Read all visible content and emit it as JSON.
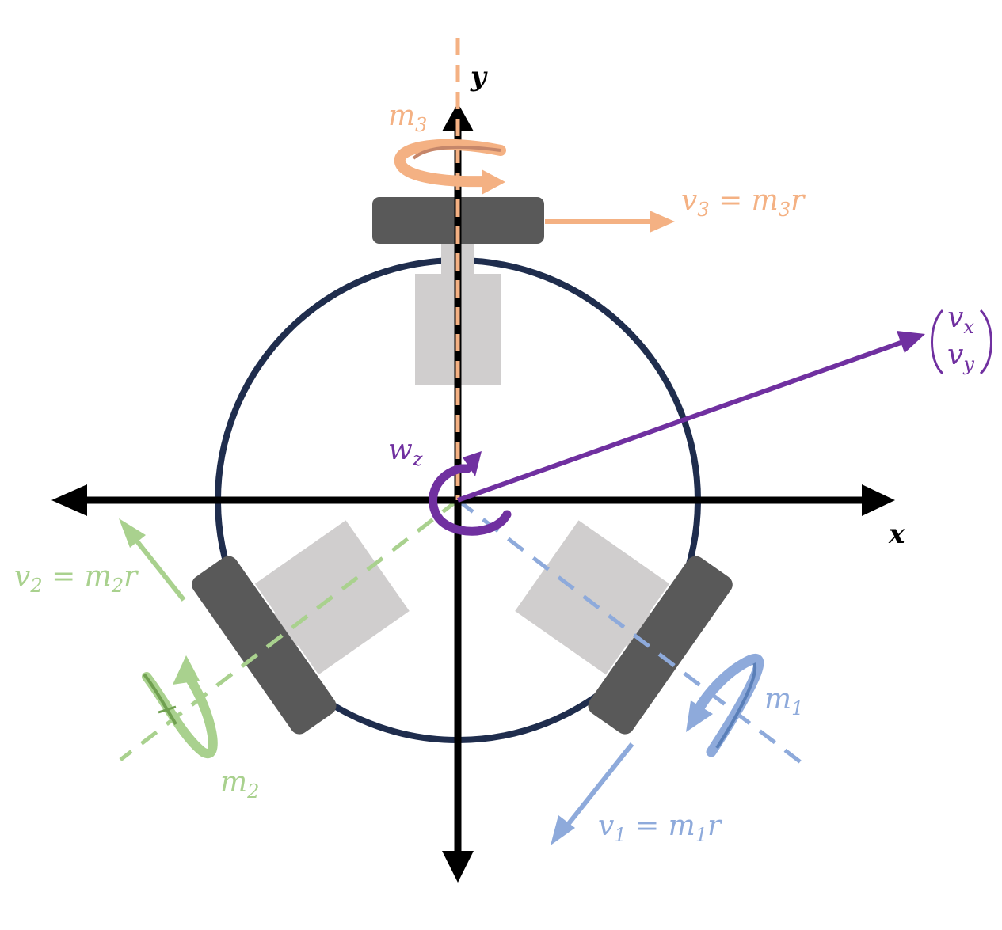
{
  "colors": {
    "m1": "#8eaadb",
    "m2": "#a9d18e",
    "m3": "#f4b183",
    "wz": "#7030a0",
    "frame": "#1f2d4d",
    "wheel": "#595959",
    "motor": "#d0cece",
    "axis": "#000000"
  },
  "axes": {
    "x_label": "x",
    "y_label": "y"
  },
  "wheel3": {
    "m_main": "m",
    "m_sub": "3",
    "v_main": "v",
    "v_sub": "3",
    "eq": " = m",
    "eq_sub": "3",
    "tail": "r"
  },
  "wheel2": {
    "m_main": "m",
    "m_sub": "2",
    "v_main": "v",
    "v_sub": "2",
    "eq": " = m",
    "eq_sub": "2",
    "tail": "r"
  },
  "wheel1": {
    "m_main": "m",
    "m_sub": "1",
    "v_main": "v",
    "v_sub": "1",
    "eq": " = m",
    "eq_sub": "1",
    "tail": "r"
  },
  "omega": {
    "main": "w",
    "sub": "z"
  },
  "velocity_vector": {
    "top_main": "v",
    "top_sub": "x",
    "bottom_main": "v",
    "bottom_sub": "y"
  }
}
